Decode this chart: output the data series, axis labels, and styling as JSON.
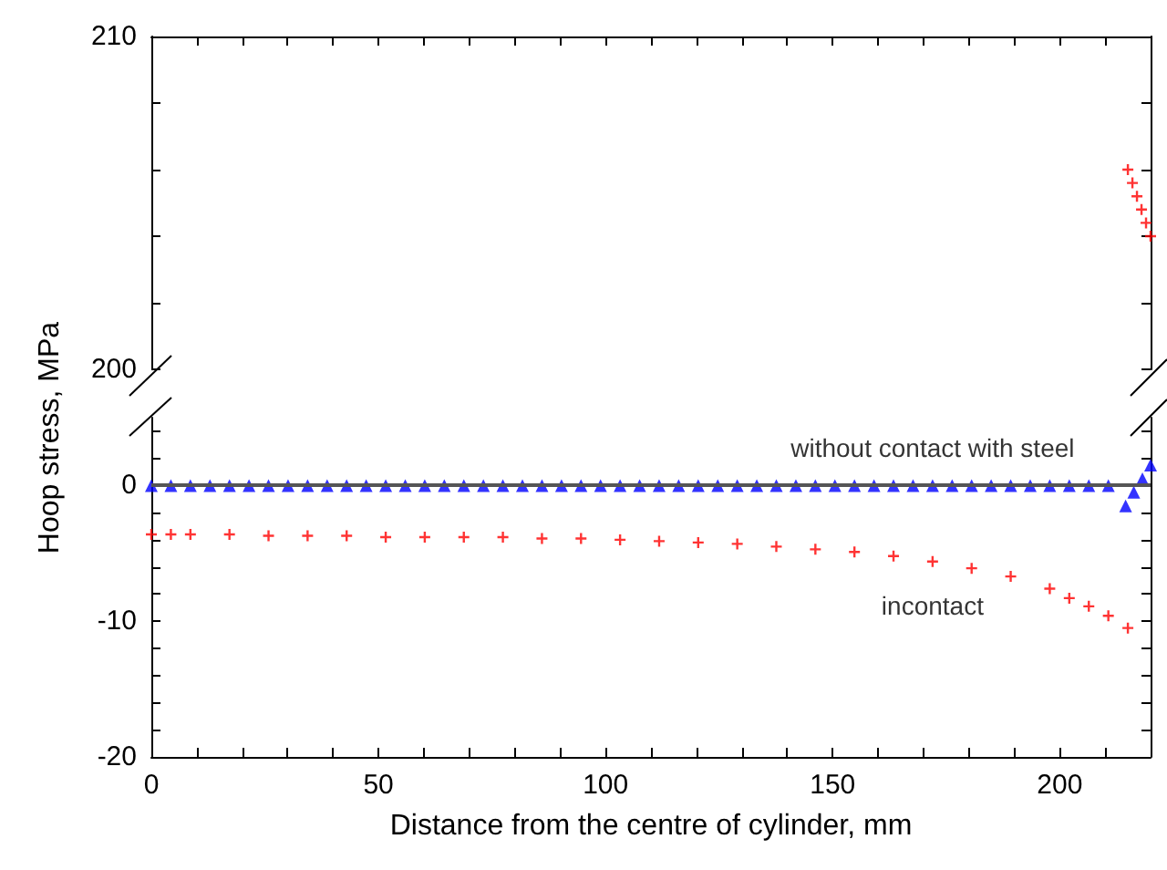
{
  "chart_data": [
    {
      "type": "scatter",
      "ylabel": "Hoop stress, MPa",
      "xlim": [
        0,
        220
      ],
      "xticks": [
        {
          "value": 0,
          "label": null
        },
        {
          "value": 10,
          "label": null
        },
        {
          "value": 20,
          "label": null
        },
        {
          "value": 30,
          "label": null
        },
        {
          "value": 40,
          "label": null
        },
        {
          "value": 50,
          "label": null
        },
        {
          "value": 60,
          "label": null
        },
        {
          "value": 70,
          "label": null
        },
        {
          "value": 80,
          "label": null
        },
        {
          "value": 90,
          "label": null
        },
        {
          "value": 100,
          "label": null
        },
        {
          "value": 110,
          "label": null
        },
        {
          "value": 120,
          "label": null
        },
        {
          "value": 130,
          "label": null
        },
        {
          "value": 140,
          "label": null
        },
        {
          "value": 150,
          "label": null
        },
        {
          "value": 160,
          "label": null
        },
        {
          "value": 170,
          "label": null
        },
        {
          "value": 180,
          "label": null
        },
        {
          "value": 190,
          "label": null
        },
        {
          "value": 200,
          "label": null
        },
        {
          "value": 210,
          "label": null
        }
      ],
      "ylim": [
        200,
        210
      ],
      "yticks": [
        200,
        {
          "value": 202,
          "label": null
        },
        {
          "value": 204,
          "label": null
        },
        {
          "value": 206,
          "label": null
        },
        {
          "value": 208,
          "label": null
        },
        210
      ],
      "tick_labels": "y",
      "series": [
        {
          "color": "#ff0000",
          "marker": "cross",
          "x": [
            215,
            216,
            217,
            218,
            219,
            220
          ],
          "values": [
            206,
            205.6,
            205.2,
            204.8,
            204.4,
            204.0
          ]
        }
      ]
    },
    {
      "type": "scatter",
      "xlabel": "Distance from the centre of cylinder, mm",
      "xlim": [
        0,
        220
      ],
      "xticks": [
        0,
        {
          "value": 10,
          "label": null
        },
        {
          "value": 20,
          "label": null
        },
        {
          "value": 30,
          "label": null
        },
        {
          "value": 40,
          "label": null
        },
        50,
        {
          "value": 60,
          "label": null
        },
        {
          "value": 70,
          "label": null
        },
        {
          "value": 80,
          "label": null
        },
        {
          "value": 90,
          "label": null
        },
        100,
        {
          "value": 110,
          "label": null
        },
        {
          "value": 120,
          "label": null
        },
        {
          "value": 130,
          "label": null
        },
        {
          "value": 140,
          "label": null
        },
        150,
        {
          "value": 160,
          "label": null
        },
        {
          "value": 170,
          "label": null
        },
        {
          "value": 180,
          "label": null
        },
        {
          "value": 190,
          "label": null
        },
        200,
        {
          "value": 210,
          "label": null
        }
      ],
      "ylim": [
        -20,
        5
      ],
      "yticks": [
        -20,
        {
          "value": -18,
          "label": null
        },
        {
          "value": -16,
          "label": null
        },
        {
          "value": -14,
          "label": null
        },
        {
          "value": -12,
          "label": null
        },
        -10,
        {
          "value": -8,
          "label": null
        },
        {
          "value": -6,
          "label": null
        },
        {
          "value": -4,
          "label": null
        },
        {
          "value": -2,
          "label": null
        },
        0,
        {
          "value": 2,
          "label": null
        },
        {
          "value": 4,
          "label": null
        }
      ],
      "ref_lines": [
        {
          "axis": "y",
          "value": 0,
          "color": "#555555"
        }
      ],
      "series": [
        {
          "name": "without contact with steel",
          "color": "#0000ff",
          "marker": "triangle",
          "x": [
            0,
            4.3,
            8.6,
            12.9,
            17.2,
            21.5,
            25.8,
            30.1,
            34.4,
            38.7,
            43,
            47.3,
            51.6,
            55.9,
            60.2,
            64.5,
            68.8,
            73.1,
            77.4,
            81.7,
            86,
            90.3,
            94.6,
            98.9,
            103.2,
            107.5,
            111.8,
            116.1,
            120.4,
            124.7,
            129,
            133.3,
            137.6,
            141.9,
            146.2,
            150.5,
            154.8,
            159.1,
            163.4,
            167.7,
            172,
            176.3,
            180.6,
            184.9,
            189.2,
            193.5,
            197.8,
            202.1,
            206.4,
            210.7,
            214.5,
            216.3,
            218.2,
            220
          ],
          "values": [
            0,
            0,
            0,
            0,
            0,
            0,
            0,
            0,
            0,
            0,
            0,
            0,
            0,
            0,
            0,
            0,
            0,
            0,
            0,
            0,
            0,
            0,
            0,
            0,
            0,
            0,
            0,
            0,
            0,
            0,
            0,
            0,
            0,
            0,
            0,
            0,
            0,
            0,
            0,
            0,
            0,
            0,
            0,
            0,
            0,
            0,
            0,
            0,
            0,
            0,
            -1.5,
            -0.5,
            0.5,
            1.5
          ]
        },
        {
          "name": "incontact",
          "color": "#ff0000",
          "marker": "cross",
          "x": [
            0,
            4.3,
            8.6,
            17.2,
            25.8,
            34.4,
            43,
            51.6,
            60.2,
            68.8,
            77.4,
            86,
            94.6,
            103.2,
            111.8,
            120.4,
            129,
            137.6,
            146.2,
            154.8,
            163.4,
            172,
            180.6,
            189.2,
            197.8,
            202.1,
            206.4,
            210.7,
            215
          ],
          "values": [
            -3.6,
            -3.6,
            -3.6,
            -3.6,
            -3.7,
            -3.7,
            -3.7,
            -3.8,
            -3.8,
            -3.8,
            -3.8,
            -3.9,
            -3.9,
            -4.0,
            -4.1,
            -4.2,
            -4.3,
            -4.5,
            -4.7,
            -4.9,
            -5.2,
            -5.6,
            -6.1,
            -6.7,
            -7.6,
            -8.3,
            -8.9,
            -9.6,
            -10.5
          ]
        }
      ]
    }
  ]
}
